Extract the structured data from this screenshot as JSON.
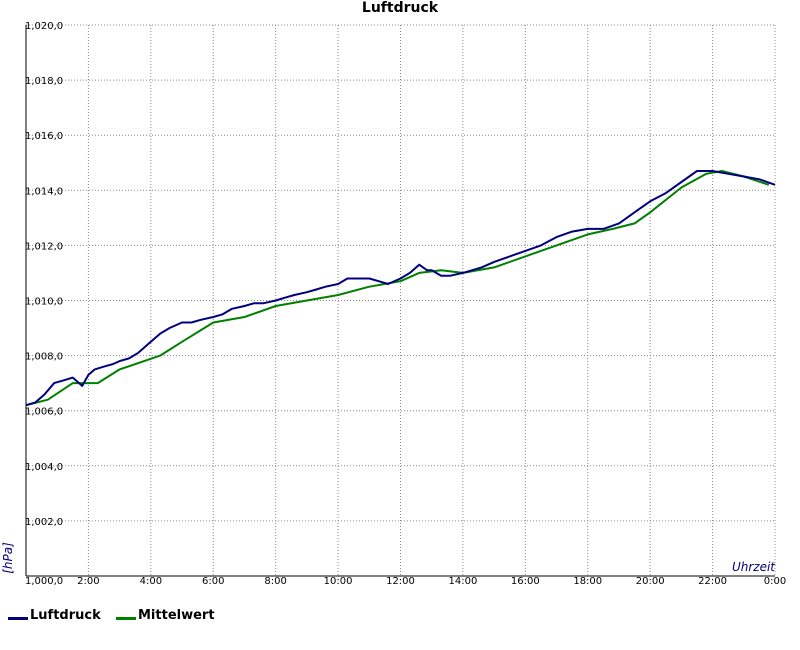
{
  "title": "Luftdruck",
  "colors": {
    "luftdruck": "#000080",
    "mittelwert": "#008000",
    "axis_label": "#000080",
    "grid": "#888888"
  },
  "chart_data": {
    "type": "line",
    "title": "Luftdruck",
    "xlabel": "Uhrzeit",
    "ylabel": "[hPa]",
    "xlim": [
      0,
      24
    ],
    "ylim": [
      1000,
      1020
    ],
    "grid": true,
    "legend_position": "bottom-left",
    "x_ticks": [
      {
        "value": 2,
        "label": "2:00"
      },
      {
        "value": 4,
        "label": "4:00"
      },
      {
        "value": 6,
        "label": "6:00"
      },
      {
        "value": 8,
        "label": "8:00"
      },
      {
        "value": 10,
        "label": "10:00"
      },
      {
        "value": 12,
        "label": "12:00"
      },
      {
        "value": 14,
        "label": "14:00"
      },
      {
        "value": 16,
        "label": "16:00"
      },
      {
        "value": 18,
        "label": "18:00"
      },
      {
        "value": 20,
        "label": "20:00"
      },
      {
        "value": 22,
        "label": "22:00"
      },
      {
        "value": 24,
        "label": "0:00"
      }
    ],
    "y_ticks": [
      {
        "value": 1000,
        "label": "1,000,0"
      },
      {
        "value": 1002,
        "label": "1,002,0"
      },
      {
        "value": 1004,
        "label": "1,004,0"
      },
      {
        "value": 1006,
        "label": "1,006,0"
      },
      {
        "value": 1008,
        "label": "1,008,0"
      },
      {
        "value": 1010,
        "label": "1,010,0"
      },
      {
        "value": 1012,
        "label": "1,012,0"
      },
      {
        "value": 1014,
        "label": "1,014,0"
      },
      {
        "value": 1016,
        "label": "1,016,0"
      },
      {
        "value": 1018,
        "label": "1,018,0"
      },
      {
        "value": 1020,
        "label": "1,020,0"
      }
    ],
    "series": [
      {
        "name": "Luftdruck",
        "x": [
          0,
          0.3,
          0.6,
          0.9,
          1.2,
          1.5,
          1.8,
          2.0,
          2.2,
          2.5,
          2.8,
          3.0,
          3.3,
          3.6,
          4.0,
          4.3,
          4.6,
          5.0,
          5.3,
          5.6,
          6.0,
          6.3,
          6.6,
          7.0,
          7.3,
          7.6,
          8.0,
          8.3,
          8.6,
          9.0,
          9.3,
          9.6,
          10.0,
          10.3,
          10.6,
          11.0,
          11.3,
          11.6,
          12.0,
          12.3,
          12.6,
          12.85,
          13.0,
          13.3,
          13.6,
          14.0,
          14.3,
          14.6,
          15.0,
          15.5,
          16.0,
          16.5,
          17.0,
          17.5,
          18.0,
          18.5,
          19.0,
          19.5,
          20.0,
          20.5,
          21.0,
          21.5,
          22.0,
          22.5,
          23.0,
          23.5,
          24.0
        ],
        "values": [
          1006.2,
          1006.3,
          1006.6,
          1007.0,
          1007.1,
          1007.2,
          1006.9,
          1007.3,
          1007.5,
          1007.6,
          1007.7,
          1007.8,
          1007.9,
          1008.1,
          1008.5,
          1008.8,
          1009.0,
          1009.2,
          1009.2,
          1009.3,
          1009.4,
          1009.5,
          1009.7,
          1009.8,
          1009.9,
          1009.9,
          1010.0,
          1010.1,
          1010.2,
          1010.3,
          1010.4,
          1010.5,
          1010.6,
          1010.8,
          1010.8,
          1010.8,
          1010.7,
          1010.6,
          1010.8,
          1011.0,
          1011.3,
          1011.1,
          1011.1,
          1010.9,
          1010.9,
          1011.0,
          1011.1,
          1011.2,
          1011.4,
          1011.6,
          1011.8,
          1012.0,
          1012.3,
          1012.5,
          1012.6,
          1012.6,
          1012.8,
          1013.2,
          1013.6,
          1013.9,
          1014.3,
          1014.7,
          1014.7,
          1014.6,
          1014.5,
          1014.4,
          1014.2
        ]
      },
      {
        "name": "Mittelwert",
        "x": [
          0,
          0.7,
          1.5,
          2.3,
          3.0,
          4.3,
          5.0,
          6.0,
          7.0,
          8.0,
          9.0,
          10.0,
          11.0,
          12.0,
          12.6,
          13.3,
          14.0,
          15.0,
          16.0,
          17.0,
          18.0,
          18.8,
          19.5,
          20.0,
          21.0,
          21.8,
          22.3,
          23.0,
          23.8
        ],
        "values": [
          1006.2,
          1006.4,
          1007.0,
          1007.0,
          1007.5,
          1008.0,
          1008.5,
          1009.2,
          1009.4,
          1009.8,
          1010.0,
          1010.2,
          1010.5,
          1010.7,
          1011.0,
          1011.1,
          1011.0,
          1011.2,
          1011.6,
          1012.0,
          1012.4,
          1012.6,
          1012.8,
          1013.2,
          1014.1,
          1014.6,
          1014.7,
          1014.5,
          1014.2
        ]
      }
    ]
  }
}
